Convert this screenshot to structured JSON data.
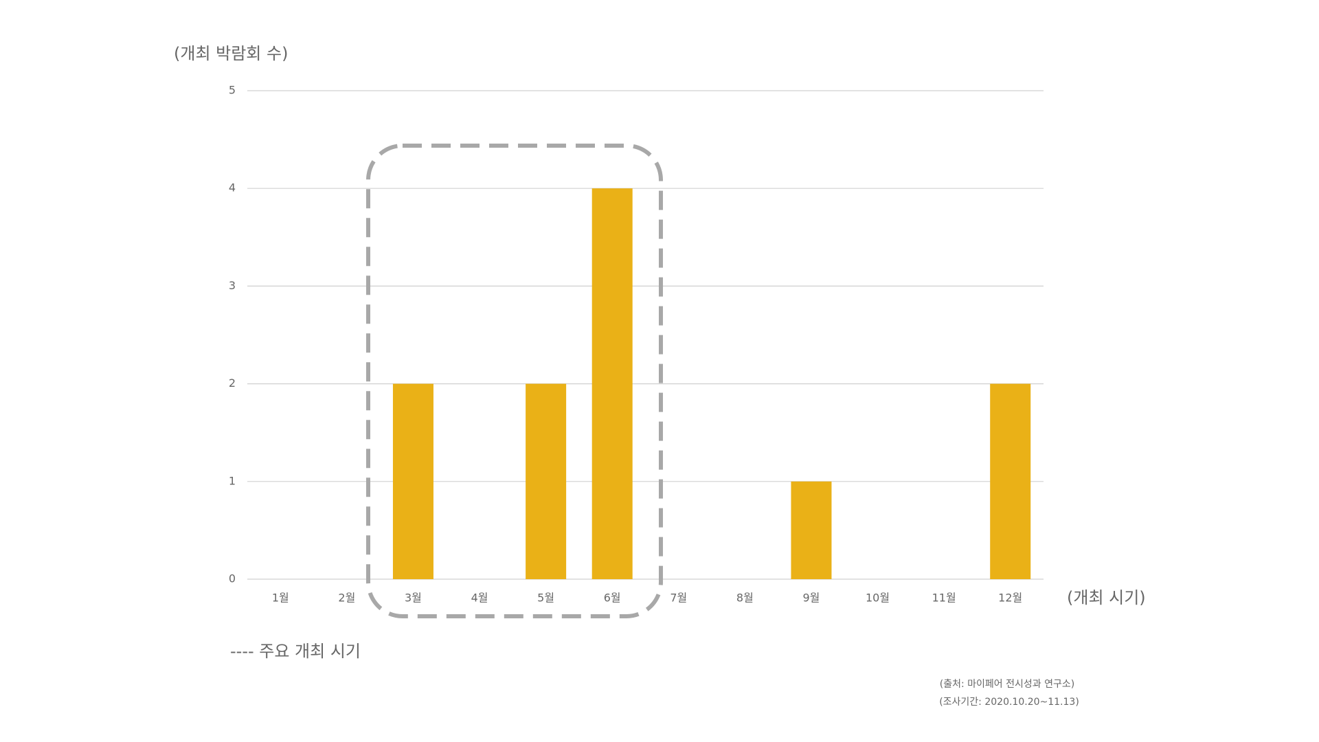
{
  "chart_data": {
    "type": "bar",
    "y_label": "(개최 박람회 수)",
    "x_label": "(개최 시기)",
    "categories": [
      "1월",
      "2월",
      "3월",
      "4월",
      "5월",
      "6월",
      "7월",
      "8월",
      "9월",
      "10월",
      "11월",
      "12월"
    ],
    "values": [
      0,
      0,
      2,
      0,
      2,
      4,
      0,
      0,
      1,
      0,
      0,
      2
    ],
    "color": "#eab117",
    "ylim": [
      0,
      5
    ],
    "yticks": [
      0,
      1,
      2,
      3,
      4,
      5
    ],
    "grid": true,
    "annotations": [
      "---- 주요 개최 시기",
      "(출처: 마이페어 전시성과 연구소)",
      "(조사기간: 2020.10.20~11.13)"
    ]
  }
}
